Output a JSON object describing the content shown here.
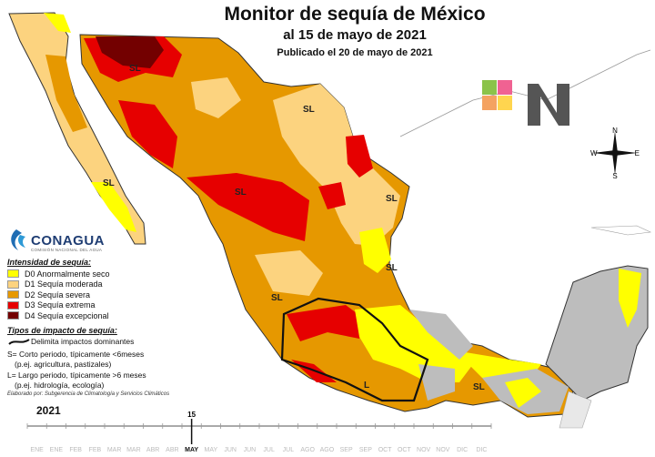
{
  "title": "Monitor de sequía de México",
  "subtitle": "al 15 de mayo de 2021",
  "published": "Publicado el 20 de mayo de 2021",
  "colors": {
    "D0": "#ffff00",
    "D1": "#fcd37f",
    "D2": "#e69800",
    "D3": "#e60000",
    "D4": "#730000",
    "no_drought": "#bdbdbd",
    "border": "#333333",
    "ocean": "#ffffff"
  },
  "legend": {
    "heading": "Intensidad de sequía:",
    "items": [
      {
        "code": "D0",
        "label": "D0 Anormalmente seco"
      },
      {
        "code": "D1",
        "label": "D1 Sequía moderada"
      },
      {
        "code": "D2",
        "label": "D2 Sequía severa"
      },
      {
        "code": "D3",
        "label": "D3 Sequía extrema"
      },
      {
        "code": "D4",
        "label": "D4 Sequía excepcional"
      }
    ],
    "impact_heading": "Tipos de impacto de sequía:",
    "impact_line": "Delimita impactos dominantes",
    "short_term_1": "S= Corto periodo, típicamente <6meses",
    "short_term_2": "(p.ej. agricultura, pastizales)",
    "long_term_1": "L= Largo periodo, típicamente >6 meses",
    "long_term_2": "(p.ej. hidrología, ecología)",
    "credit": "Elaborado por: Subgerencia de Climatología y Servicios Climáticos"
  },
  "logo": {
    "word": "CONAGUA",
    "subtitle": "COMISIÓN NACIONAL DEL AGUA"
  },
  "compass": {
    "n": "N",
    "s": "S",
    "e": "E",
    "w": "W"
  },
  "impact_labels": [
    "SL",
    "SL",
    "SL",
    "SL",
    "SL",
    "SL",
    "SL",
    "SL",
    "L"
  ],
  "timeline": {
    "year": "2021",
    "months": [
      "ENE",
      "FEB",
      "MAR",
      "ABR",
      "MAY",
      "JUN",
      "JUL",
      "AGO",
      "SEP",
      "OCT",
      "NOV",
      "DIC"
    ],
    "marker_day": "15",
    "marker_month": "MAY"
  }
}
